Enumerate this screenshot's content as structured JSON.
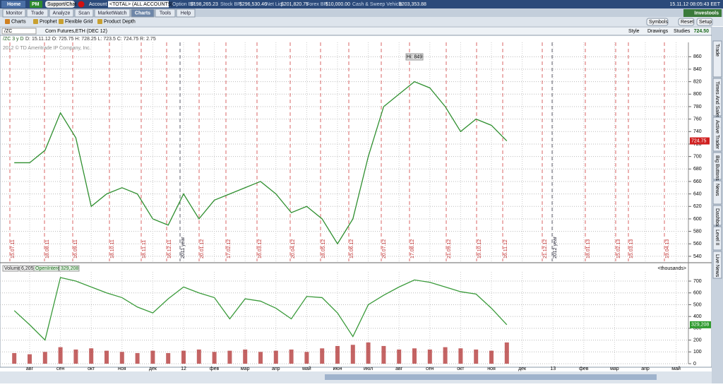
{
  "topbar": {
    "home": "Home",
    "pm": "PM",
    "support": "Support/Chat",
    "account_label": "Account",
    "account": "<TOTAL> (ALL ACCOUNTS)",
    "fields": [
      {
        "label": "Option BP",
        "value": "$198,265.23"
      },
      {
        "label": "Stock BP",
        "value": "$296,530.46"
      },
      {
        "label": "Net Liq",
        "value": "$201,820.75"
      },
      {
        "label": "Forex BP",
        "value": "$10,000.00"
      },
      {
        "label": "Cash & Sweep Vehicle",
        "value": "$203,353.88"
      }
    ],
    "datetime": "15.11.12 08:05:43 EET"
  },
  "tabs": [
    "Monitor",
    "Trade",
    "Analyze",
    "Scan",
    "MarketWatch",
    "Charts",
    "Tools",
    "Help"
  ],
  "active_tab": 5,
  "brand": "Investools",
  "subtabs": [
    "Charts",
    "Prophet",
    "Flexible Grid",
    "Product Depth"
  ],
  "buttons": [
    "Symbols",
    "Reset",
    "Setup"
  ],
  "symbol": "/ZC",
  "description": "Corn Futures,ETH (DEC 12)",
  "tools": [
    "Style",
    "Drawings",
    "Studies"
  ],
  "last": "724.50",
  "chart_header": {
    "symbol": "/ZC 3 y D",
    "ohlc": "D: 15.11.12  O: 725.75  H: 728.25  L: 723.5  C: 724.75  R: 2.75",
    "copyright": "2012 © TD Ameritrade IP Company, Inc."
  },
  "side_tabs": [
    "Trade",
    "Times And Sales",
    "Active Trader",
    "Big Buttons",
    "News",
    "Dashboard",
    "Level II",
    "Live News"
  ],
  "chart_data": [
    {
      "type": "line",
      "categories": [
        null,
        "авг",
        null,
        "сен",
        null,
        "окт",
        null,
        "ноя",
        null,
        "дек",
        null,
        "12",
        null,
        "фев",
        null,
        "мар",
        null,
        "апр",
        null,
        "май",
        null,
        "июн",
        null,
        "июл",
        null,
        "авг",
        null,
        "сен",
        null,
        "окт",
        null,
        "ноя",
        null,
        "дек",
        null,
        "13",
        null,
        "фев",
        null,
        "мар",
        null,
        "апр",
        null,
        "май",
        null
      ],
      "series": [
        {
          "name": "/ZC",
          "color": "#2f8f2f",
          "values": [
            690,
            690,
            710,
            770,
            730,
            620,
            640,
            650,
            640,
            600,
            590,
            640,
            600,
            630,
            640,
            650,
            660,
            640,
            610,
            620,
            600,
            560,
            600,
            700,
            780,
            800,
            820,
            810,
            780,
            740,
            760,
            750,
            725,
            null,
            null,
            null,
            null,
            null,
            null,
            null,
            null,
            null,
            null,
            null,
            null
          ]
        }
      ],
      "ylim": [
        532,
        883
      ],
      "yticks": [
        540,
        560,
        580,
        600,
        620,
        640,
        660,
        680,
        700,
        720,
        740,
        760,
        780,
        800,
        820,
        840,
        860
      ],
      "grid": true,
      "annotation": "Hi: 849",
      "last_label": "724.75",
      "date_markers": [
        "15.07.11",
        "18.08.11",
        "16.09.11",
        "18.10.11",
        "18.11.11",
        "16.12.11",
        "2011 year",
        "20.01.12",
        "17.02.12",
        "16.03.12",
        "20.04.12",
        "18.05.12",
        "15.06.12",
        "20.07.12",
        "17.08.12",
        "21.09.12",
        "19.10.12",
        "16.11.12",
        "21.12.12",
        "2012 year",
        "18.01.13",
        "15.02.13",
        "15.03.13",
        "19.04.13"
      ]
    },
    {
      "type": "bar",
      "header": [
        "Volume",
        "6,205",
        "OpenInterest",
        "329,208"
      ],
      "units": "<thousands>",
      "series": [
        {
          "name": "Volume",
          "color": "#b03030",
          "values": [
            90,
            80,
            100,
            140,
            120,
            130,
            110,
            100,
            90,
            110,
            90,
            110,
            120,
            100,
            110,
            120,
            100,
            110,
            120,
            100,
            130,
            150,
            160,
            180,
            150,
            120,
            130,
            120,
            140,
            130,
            120,
            110,
            180,
            null,
            null,
            null,
            null,
            null,
            null,
            null,
            null,
            null,
            null,
            null,
            null
          ]
        },
        {
          "name": "OpenInterest",
          "type": "line",
          "color": "#3a9a3a",
          "values": [
            450,
            330,
            200,
            730,
            700,
            650,
            600,
            560,
            480,
            430,
            550,
            650,
            600,
            560,
            380,
            550,
            530,
            470,
            380,
            570,
            560,
            430,
            230,
            500,
            580,
            650,
            710,
            690,
            650,
            610,
            590,
            470,
            330,
            null,
            null,
            null,
            null,
            null,
            null,
            null,
            null,
            null,
            null,
            null,
            null
          ]
        }
      ],
      "ylim": [
        0,
        778
      ],
      "yticks": [
        0,
        100,
        200,
        300,
        400,
        500,
        600,
        700
      ],
      "grid": true,
      "last_label": "329,208"
    }
  ]
}
